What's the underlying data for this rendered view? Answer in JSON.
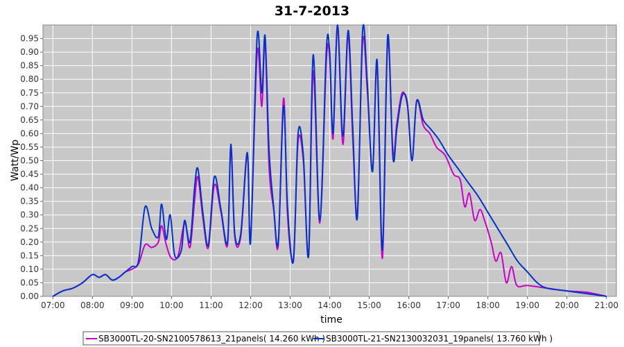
{
  "chart_data": {
    "type": "line",
    "title": "31-7-2013",
    "xlabel": "time",
    "ylabel": "Watt/Wp",
    "xlim": [
      "06:45",
      "21:15"
    ],
    "ylim": [
      0,
      1.0
    ],
    "x_ticks": [
      "07:00",
      "08:00",
      "09:00",
      "10:00",
      "11:00",
      "12:00",
      "13:00",
      "14:00",
      "15:00",
      "16:00",
      "17:00",
      "18:00",
      "19:00",
      "20:00",
      "21:00"
    ],
    "y_ticks": [
      "0.00",
      "0.05",
      "0.10",
      "0.15",
      "0.20",
      "0.25",
      "0.30",
      "0.35",
      "0.40",
      "0.45",
      "0.50",
      "0.55",
      "0.60",
      "0.65",
      "0.70",
      "0.75",
      "0.80",
      "0.85",
      "0.90",
      "0.95"
    ],
    "grid": true,
    "background": "#c8c8c8",
    "legend_position": "bottom",
    "series": [
      {
        "name": "SB3000TL-20-SN2100578613_21panels( 14.260 kWh )",
        "color": "#cc00cc",
        "points": [
          [
            "07:00",
            0.0
          ],
          [
            "07:15",
            0.02
          ],
          [
            "07:30",
            0.03
          ],
          [
            "07:45",
            0.05
          ],
          [
            "08:00",
            0.08
          ],
          [
            "08:10",
            0.07
          ],
          [
            "08:20",
            0.08
          ],
          [
            "08:30",
            0.06
          ],
          [
            "08:40",
            0.07
          ],
          [
            "08:50",
            0.09
          ],
          [
            "09:00",
            0.1
          ],
          [
            "09:10",
            0.12
          ],
          [
            "09:20",
            0.19
          ],
          [
            "09:30",
            0.18
          ],
          [
            "09:40",
            0.2
          ],
          [
            "09:45",
            0.26
          ],
          [
            "09:52",
            0.19
          ],
          [
            "10:00",
            0.14
          ],
          [
            "10:10",
            0.15
          ],
          [
            "10:20",
            0.27
          ],
          [
            "10:28",
            0.18
          ],
          [
            "10:35",
            0.35
          ],
          [
            "10:40",
            0.44
          ],
          [
            "10:48",
            0.28
          ],
          [
            "10:56",
            0.18
          ],
          [
            "11:05",
            0.41
          ],
          [
            "11:15",
            0.31
          ],
          [
            "11:25",
            0.19
          ],
          [
            "11:30",
            0.55
          ],
          [
            "11:36",
            0.22
          ],
          [
            "11:45",
            0.22
          ],
          [
            "11:55",
            0.52
          ],
          [
            "12:00",
            0.21
          ],
          [
            "12:10",
            0.9
          ],
          [
            "12:17",
            0.7
          ],
          [
            "12:22",
            0.94
          ],
          [
            "12:28",
            0.48
          ],
          [
            "12:35",
            0.32
          ],
          [
            "12:42",
            0.19
          ],
          [
            "12:50",
            0.73
          ],
          [
            "12:56",
            0.3
          ],
          [
            "13:05",
            0.14
          ],
          [
            "13:12",
            0.57
          ],
          [
            "13:20",
            0.5
          ],
          [
            "13:28",
            0.15
          ],
          [
            "13:35",
            0.83
          ],
          [
            "13:45",
            0.27
          ],
          [
            "13:55",
            0.87
          ],
          [
            "14:00",
            0.88
          ],
          [
            "14:05",
            0.58
          ],
          [
            "14:12",
            0.99
          ],
          [
            "14:20",
            0.56
          ],
          [
            "14:28",
            0.96
          ],
          [
            "14:35",
            0.58
          ],
          [
            "14:42",
            0.31
          ],
          [
            "14:50",
            0.94
          ],
          [
            "14:57",
            0.76
          ],
          [
            "15:05",
            0.46
          ],
          [
            "15:12",
            0.85
          ],
          [
            "15:20",
            0.14
          ],
          [
            "15:28",
            0.94
          ],
          [
            "15:36",
            0.53
          ],
          [
            "15:42",
            0.64
          ],
          [
            "15:50",
            0.75
          ],
          [
            "15:58",
            0.7
          ],
          [
            "16:05",
            0.5
          ],
          [
            "16:12",
            0.72
          ],
          [
            "16:22",
            0.63
          ],
          [
            "16:32",
            0.6
          ],
          [
            "16:42",
            0.55
          ],
          [
            "16:55",
            0.52
          ],
          [
            "17:08",
            0.45
          ],
          [
            "17:18",
            0.43
          ],
          [
            "17:25",
            0.33
          ],
          [
            "17:32",
            0.38
          ],
          [
            "17:40",
            0.28
          ],
          [
            "17:48",
            0.32
          ],
          [
            "17:55",
            0.28
          ],
          [
            "18:05",
            0.2
          ],
          [
            "18:12",
            0.13
          ],
          [
            "18:20",
            0.16
          ],
          [
            "18:28",
            0.05
          ],
          [
            "18:36",
            0.11
          ],
          [
            "18:44",
            0.04
          ],
          [
            "19:00",
            0.04
          ],
          [
            "19:30",
            0.03
          ],
          [
            "20:00",
            0.02
          ],
          [
            "20:30",
            0.015
          ],
          [
            "21:00",
            0.0
          ]
        ]
      },
      {
        "name": "SB3000TL-21-SN2130032031_19panels( 13.760 kWh )",
        "color": "#0033cc",
        "points": [
          [
            "07:00",
            0.0
          ],
          [
            "07:15",
            0.02
          ],
          [
            "07:30",
            0.03
          ],
          [
            "07:45",
            0.05
          ],
          [
            "08:00",
            0.08
          ],
          [
            "08:10",
            0.07
          ],
          [
            "08:20",
            0.08
          ],
          [
            "08:30",
            0.06
          ],
          [
            "08:40",
            0.07
          ],
          [
            "08:50",
            0.09
          ],
          [
            "09:00",
            0.11
          ],
          [
            "09:10",
            0.13
          ],
          [
            "09:20",
            0.33
          ],
          [
            "09:30",
            0.25
          ],
          [
            "09:40",
            0.22
          ],
          [
            "09:45",
            0.34
          ],
          [
            "09:52",
            0.21
          ],
          [
            "09:58",
            0.3
          ],
          [
            "10:05",
            0.15
          ],
          [
            "10:15",
            0.17
          ],
          [
            "10:20",
            0.28
          ],
          [
            "10:28",
            0.2
          ],
          [
            "10:35",
            0.4
          ],
          [
            "10:40",
            0.47
          ],
          [
            "10:48",
            0.3
          ],
          [
            "10:56",
            0.19
          ],
          [
            "11:05",
            0.44
          ],
          [
            "11:15",
            0.32
          ],
          [
            "11:25",
            0.2
          ],
          [
            "11:30",
            0.56
          ],
          [
            "11:36",
            0.23
          ],
          [
            "11:45",
            0.23
          ],
          [
            "11:55",
            0.53
          ],
          [
            "12:00",
            0.2
          ],
          [
            "12:10",
            0.96
          ],
          [
            "12:17",
            0.75
          ],
          [
            "12:22",
            0.96
          ],
          [
            "12:28",
            0.54
          ],
          [
            "12:35",
            0.33
          ],
          [
            "12:42",
            0.2
          ],
          [
            "12:50",
            0.7
          ],
          [
            "12:56",
            0.33
          ],
          [
            "13:05",
            0.13
          ],
          [
            "13:12",
            0.6
          ],
          [
            "13:20",
            0.52
          ],
          [
            "13:28",
            0.15
          ],
          [
            "13:35",
            0.89
          ],
          [
            "13:45",
            0.28
          ],
          [
            "13:55",
            0.91
          ],
          [
            "14:00",
            0.9
          ],
          [
            "14:05",
            0.6
          ],
          [
            "14:12",
            1.0
          ],
          [
            "14:20",
            0.59
          ],
          [
            "14:28",
            0.98
          ],
          [
            "14:35",
            0.62
          ],
          [
            "14:42",
            0.29
          ],
          [
            "14:50",
            0.98
          ],
          [
            "14:57",
            0.79
          ],
          [
            "15:05",
            0.46
          ],
          [
            "15:12",
            0.87
          ],
          [
            "15:20",
            0.17
          ],
          [
            "15:28",
            0.96
          ],
          [
            "15:36",
            0.51
          ],
          [
            "15:42",
            0.62
          ],
          [
            "15:50",
            0.74
          ],
          [
            "15:58",
            0.71
          ],
          [
            "16:05",
            0.5
          ],
          [
            "16:12",
            0.72
          ],
          [
            "16:22",
            0.65
          ],
          [
            "16:32",
            0.62
          ],
          [
            "16:45",
            0.58
          ],
          [
            "17:00",
            0.52
          ],
          [
            "17:15",
            0.47
          ],
          [
            "17:30",
            0.42
          ],
          [
            "17:45",
            0.37
          ],
          [
            "18:00",
            0.31
          ],
          [
            "18:15",
            0.25
          ],
          [
            "18:30",
            0.19
          ],
          [
            "18:45",
            0.13
          ],
          [
            "19:00",
            0.09
          ],
          [
            "19:15",
            0.05
          ],
          [
            "19:30",
            0.03
          ],
          [
            "20:00",
            0.02
          ],
          [
            "20:30",
            0.01
          ],
          [
            "21:00",
            0.0
          ]
        ]
      }
    ]
  }
}
